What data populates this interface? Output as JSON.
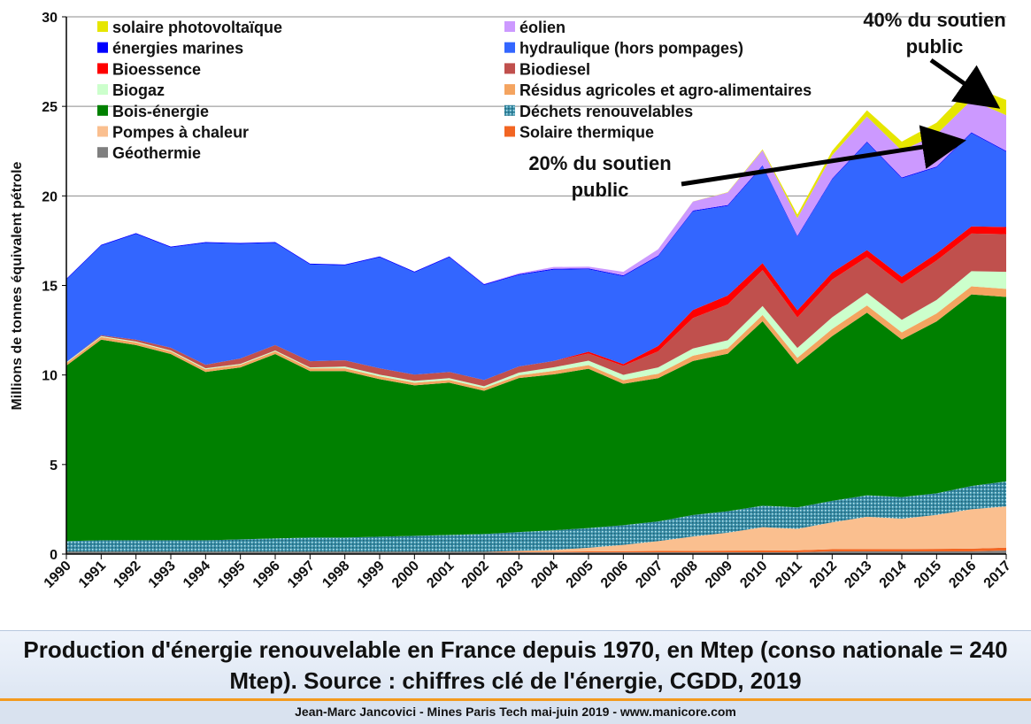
{
  "caption": "Production d'énergie renouvelable en France depuis 1970, en Mtep (conso nationale = 240 Mtep). Source : chiffres clé de l'énergie, CGDD, 2019",
  "footer": "Jean-Marc Jancovici - Mines Paris Tech mai-juin 2019 - www.manicore.com",
  "colors": {
    "caption_band": "#e6edf7",
    "accent_rule": "#f39a1e"
  },
  "chart_data": {
    "type": "area",
    "stacked": true,
    "title": "",
    "xlabel": "",
    "ylabel": "Millions de tonnes équivalent pétrole",
    "ylim": [
      0,
      30
    ],
    "yticks": [
      0,
      5,
      10,
      15,
      20,
      25,
      30
    ],
    "grid": true,
    "legend_position": "top-left, two columns",
    "x": [
      "1990",
      "1991",
      "1992",
      "1993",
      "1994",
      "1995",
      "1996",
      "1997",
      "1998",
      "1999",
      "2000",
      "2001",
      "2002",
      "2003",
      "2004",
      "2005",
      "2006",
      "2007",
      "2008",
      "2009",
      "2010",
      "2011",
      "2012",
      "2013",
      "2014",
      "2015",
      "2016",
      "2017"
    ],
    "series": [
      {
        "name": "Géothermie",
        "color": "#7f7f7f",
        "values": [
          0.1,
          0.1,
          0.1,
          0.1,
          0.1,
          0.1,
          0.1,
          0.1,
          0.1,
          0.1,
          0.1,
          0.1,
          0.1,
          0.1,
          0.1,
          0.1,
          0.1,
          0.1,
          0.1,
          0.1,
          0.1,
          0.1,
          0.15,
          0.15,
          0.15,
          0.15,
          0.15,
          0.2
        ]
      },
      {
        "name": "Solaire thermique",
        "color": "#f26522",
        "values": [
          0.02,
          0.02,
          0.02,
          0.02,
          0.02,
          0.02,
          0.02,
          0.02,
          0.02,
          0.02,
          0.02,
          0.02,
          0.02,
          0.03,
          0.03,
          0.05,
          0.06,
          0.07,
          0.08,
          0.09,
          0.1,
          0.11,
          0.12,
          0.13,
          0.13,
          0.14,
          0.15,
          0.16
        ]
      },
      {
        "name": "Pompes à chaleur",
        "color": "#fabf8f",
        "values": [
          0,
          0,
          0,
          0,
          0,
          0,
          0,
          0,
          0,
          0,
          0,
          0,
          0,
          0.05,
          0.1,
          0.2,
          0.35,
          0.55,
          0.8,
          1.0,
          1.3,
          1.2,
          1.5,
          1.8,
          1.7,
          1.9,
          2.2,
          2.3
        ]
      },
      {
        "name": "Déchets renouvelables",
        "color": "#31859c",
        "values": [
          0.6,
          0.65,
          0.65,
          0.65,
          0.65,
          0.7,
          0.75,
          0.8,
          0.8,
          0.85,
          0.9,
          0.95,
          1.0,
          1.05,
          1.1,
          1.1,
          1.1,
          1.1,
          1.2,
          1.2,
          1.2,
          1.2,
          1.2,
          1.2,
          1.2,
          1.2,
          1.3,
          1.4
        ]
      },
      {
        "name": "Bois-énergie",
        "color": "#008000",
        "values": [
          9.8,
          11.2,
          10.9,
          10.4,
          9.4,
          9.6,
          10.3,
          9.3,
          9.3,
          8.8,
          8.4,
          8.5,
          8.0,
          8.6,
          8.7,
          8.9,
          7.9,
          8.0,
          8.6,
          8.8,
          10.3,
          8.0,
          9.2,
          10.2,
          8.8,
          9.6,
          10.7,
          10.3
        ]
      },
      {
        "name": "Résidus agricoles et agro-alimentaires",
        "color": "#f4a460",
        "values": [
          0.15,
          0.15,
          0.15,
          0.15,
          0.15,
          0.15,
          0.15,
          0.15,
          0.15,
          0.15,
          0.15,
          0.15,
          0.15,
          0.15,
          0.2,
          0.2,
          0.2,
          0.25,
          0.3,
          0.3,
          0.35,
          0.35,
          0.4,
          0.4,
          0.4,
          0.45,
          0.45,
          0.45
        ]
      },
      {
        "name": "Biogaz",
        "color": "#ccffcc",
        "values": [
          0.05,
          0.05,
          0.05,
          0.05,
          0.05,
          0.05,
          0.05,
          0.05,
          0.1,
          0.1,
          0.1,
          0.1,
          0.1,
          0.15,
          0.2,
          0.25,
          0.3,
          0.35,
          0.4,
          0.45,
          0.5,
          0.55,
          0.65,
          0.7,
          0.7,
          0.75,
          0.85,
          0.95
        ]
      },
      {
        "name": "Biodiesel",
        "color": "#c0504d",
        "values": [
          0,
          0.05,
          0.1,
          0.15,
          0.2,
          0.3,
          0.3,
          0.35,
          0.35,
          0.35,
          0.35,
          0.35,
          0.35,
          0.35,
          0.35,
          0.4,
          0.5,
          0.9,
          1.7,
          2.0,
          2.0,
          1.7,
          2.1,
          2.0,
          2.0,
          2.2,
          2.1,
          2.1
        ]
      },
      {
        "name": "Bioessence",
        "color": "#ff0000",
        "values": [
          0,
          0,
          0,
          0,
          0,
          0,
          0,
          0,
          0,
          0,
          0,
          0,
          0,
          0,
          0,
          0.1,
          0.1,
          0.3,
          0.45,
          0.5,
          0.4,
          0.4,
          0.4,
          0.4,
          0.4,
          0.4,
          0.4,
          0.4
        ]
      },
      {
        "name": "hydraulique (hors pompages)",
        "color": "#3366ff",
        "values": [
          4.6,
          5.0,
          5.9,
          5.6,
          6.8,
          6.4,
          5.7,
          5.4,
          5.3,
          6.2,
          5.7,
          6.4,
          5.3,
          5.1,
          5.1,
          4.6,
          4.9,
          5.0,
          5.5,
          5.0,
          5.4,
          4.1,
          5.2,
          6.0,
          5.5,
          4.8,
          5.2,
          4.2
        ]
      },
      {
        "name": "énergies marines",
        "color": "#0000ff",
        "values": [
          0.05,
          0.05,
          0.05,
          0.05,
          0.05,
          0.05,
          0.05,
          0.05,
          0.05,
          0.05,
          0.05,
          0.05,
          0.05,
          0.05,
          0.05,
          0.05,
          0.05,
          0.05,
          0.05,
          0.05,
          0.05,
          0.05,
          0.05,
          0.05,
          0.05,
          0.05,
          0.05,
          0.05
        ]
      },
      {
        "name": "éolien",
        "color": "#cc99ff",
        "values": [
          0,
          0,
          0,
          0,
          0,
          0,
          0,
          0,
          0,
          0,
          0,
          0.01,
          0.02,
          0.05,
          0.1,
          0.1,
          0.2,
          0.35,
          0.5,
          0.7,
          0.85,
          1.0,
          1.3,
          1.4,
          1.5,
          1.8,
          1.8,
          2.0
        ]
      },
      {
        "name": "solaire photovoltaïque",
        "color": "#e6e600",
        "values": [
          0,
          0,
          0,
          0,
          0,
          0,
          0,
          0,
          0,
          0,
          0,
          0,
          0,
          0,
          0,
          0,
          0,
          0,
          0.01,
          0.02,
          0.05,
          0.2,
          0.25,
          0.35,
          0.5,
          0.65,
          0.75,
          0.85
        ]
      }
    ],
    "annotations": [
      {
        "text": "20% du soutien public",
        "points_to": "2016"
      },
      {
        "text": "40% du soutien public",
        "points_to": "2017"
      }
    ]
  }
}
